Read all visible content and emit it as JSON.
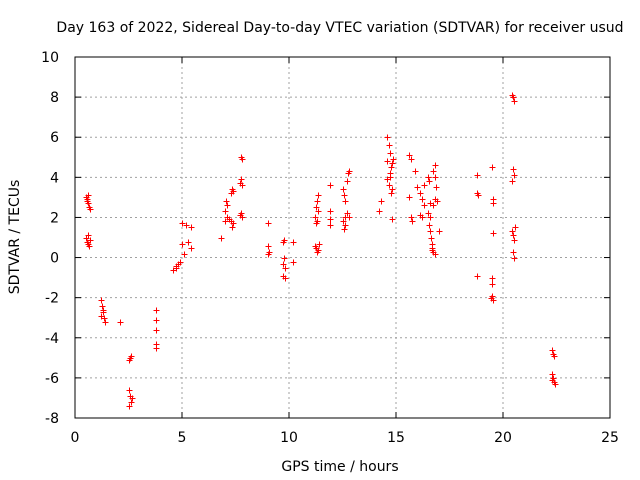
{
  "chart_data": {
    "type": "scatter",
    "title": "Day 163 of 2022, Sidereal Day-to-day VTEC variation (SDTVAR) for receiver usud",
    "xlabel": "GPS time / hours",
    "ylabel": "SDTVAR / TECUs",
    "xlim": [
      0,
      25
    ],
    "ylim": [
      -8,
      10
    ],
    "xticks": [
      0,
      5,
      10,
      15,
      20,
      25
    ],
    "yticks": [
      -8,
      -6,
      -4,
      -2,
      0,
      2,
      4,
      6,
      8,
      10
    ],
    "xtick_labels": [
      "0",
      "5",
      "10",
      "15",
      "20",
      "25"
    ],
    "ytick_labels": [
      "-8",
      "-6",
      "-4",
      "-2",
      "0",
      "2",
      "4",
      "6",
      "8",
      "10"
    ],
    "grid": true,
    "marker": "+",
    "color": "#ff0000",
    "series": [
      {
        "name": "SDTVAR",
        "points": [
          [
            0.5,
            3.0
          ],
          [
            0.55,
            2.9
          ],
          [
            0.6,
            2.7
          ],
          [
            0.65,
            2.5
          ],
          [
            0.7,
            2.4
          ],
          [
            0.55,
            2.8
          ],
          [
            0.6,
            3.1
          ],
          [
            0.5,
            1.0
          ],
          [
            0.55,
            0.8
          ],
          [
            0.6,
            0.7
          ],
          [
            0.65,
            0.6
          ],
          [
            0.7,
            0.9
          ],
          [
            0.6,
            1.1
          ],
          [
            1.2,
            -2.1
          ],
          [
            1.25,
            -2.4
          ],
          [
            1.3,
            -2.7
          ],
          [
            1.35,
            -3.0
          ],
          [
            1.4,
            -3.2
          ],
          [
            1.2,
            -2.9
          ],
          [
            1.3,
            -2.6
          ],
          [
            2.1,
            -3.2
          ],
          [
            2.5,
            -5.1
          ],
          [
            2.55,
            -5.0
          ],
          [
            2.6,
            -4.9
          ],
          [
            2.5,
            -6.6
          ],
          [
            2.55,
            -6.9
          ],
          [
            2.6,
            -7.2
          ],
          [
            2.5,
            -7.4
          ],
          [
            2.65,
            -7.0
          ],
          [
            3.8,
            -2.6
          ],
          [
            3.8,
            -3.1
          ],
          [
            3.8,
            -3.6
          ],
          [
            3.8,
            -4.3
          ],
          [
            3.8,
            -4.5
          ],
          [
            4.6,
            -0.6
          ],
          [
            4.7,
            -0.5
          ],
          [
            4.8,
            -0.3
          ],
          [
            4.9,
            -0.2
          ],
          [
            4.7,
            -0.4
          ],
          [
            5.0,
            1.7
          ],
          [
            5.0,
            0.7
          ],
          [
            5.1,
            0.2
          ],
          [
            5.3,
            0.8
          ],
          [
            5.4,
            1.5
          ],
          [
            5.4,
            0.5
          ],
          [
            5.2,
            1.6
          ],
          [
            6.8,
            1.0
          ],
          [
            7.0,
            1.8
          ],
          [
            7.1,
            2.0
          ],
          [
            7.0,
            2.3
          ],
          [
            7.1,
            2.6
          ],
          [
            7.05,
            2.8
          ],
          [
            7.2,
            1.9
          ],
          [
            7.3,
            3.2
          ],
          [
            7.35,
            3.4
          ],
          [
            7.4,
            3.3
          ],
          [
            7.3,
            1.8
          ],
          [
            7.4,
            1.7
          ],
          [
            7.35,
            1.5
          ],
          [
            7.7,
            2.1
          ],
          [
            7.75,
            2.2
          ],
          [
            7.8,
            2.0
          ],
          [
            7.7,
            3.7
          ],
          [
            7.75,
            3.9
          ],
          [
            7.8,
            3.6
          ],
          [
            7.8,
            4.9
          ],
          [
            7.75,
            5.0
          ],
          [
            9.0,
            1.7
          ],
          [
            9.0,
            0.6
          ],
          [
            9.05,
            0.3
          ],
          [
            9.0,
            0.2
          ],
          [
            9.7,
            0.8
          ],
          [
            9.75,
            0.0
          ],
          [
            9.7,
            -0.3
          ],
          [
            9.8,
            -0.5
          ],
          [
            9.7,
            -0.9
          ],
          [
            9.8,
            -1.0
          ],
          [
            9.75,
            0.9
          ],
          [
            10.2,
            0.8
          ],
          [
            10.2,
            -0.2
          ],
          [
            11.2,
            2.0
          ],
          [
            11.25,
            2.5
          ],
          [
            11.3,
            2.8
          ],
          [
            11.35,
            3.1
          ],
          [
            11.3,
            1.8
          ],
          [
            11.25,
            1.7
          ],
          [
            11.35,
            2.3
          ],
          [
            11.2,
            0.6
          ],
          [
            11.25,
            0.5
          ],
          [
            11.3,
            0.3
          ],
          [
            11.35,
            0.4
          ],
          [
            11.4,
            0.7
          ],
          [
            11.9,
            3.6
          ],
          [
            11.9,
            2.3
          ],
          [
            11.9,
            1.9
          ],
          [
            11.9,
            1.6
          ],
          [
            12.5,
            3.4
          ],
          [
            12.55,
            3.1
          ],
          [
            12.6,
            2.8
          ],
          [
            12.5,
            1.8
          ],
          [
            12.6,
            1.6
          ],
          [
            12.55,
            1.4
          ],
          [
            12.6,
            2.0
          ],
          [
            12.7,
            3.8
          ],
          [
            12.75,
            4.2
          ],
          [
            12.8,
            4.3
          ],
          [
            12.7,
            2.2
          ],
          [
            12.8,
            2.0
          ],
          [
            14.2,
            2.3
          ],
          [
            14.3,
            2.8
          ],
          [
            14.6,
            6.0
          ],
          [
            14.65,
            5.6
          ],
          [
            14.7,
            5.2
          ],
          [
            14.6,
            4.8
          ],
          [
            14.75,
            4.5
          ],
          [
            14.7,
            4.2
          ],
          [
            14.6,
            3.9
          ],
          [
            14.65,
            3.6
          ],
          [
            14.7,
            4.0
          ],
          [
            14.8,
            4.7
          ],
          [
            14.85,
            4.9
          ],
          [
            14.8,
            3.4
          ],
          [
            14.8,
            1.9
          ],
          [
            14.75,
            3.2
          ],
          [
            15.6,
            5.1
          ],
          [
            15.7,
            4.9
          ],
          [
            15.6,
            3.0
          ],
          [
            15.7,
            2.0
          ],
          [
            15.75,
            1.8
          ],
          [
            15.9,
            4.3
          ],
          [
            16.0,
            3.5
          ],
          [
            16.1,
            3.2
          ],
          [
            16.2,
            2.9
          ],
          [
            16.1,
            2.1
          ],
          [
            16.2,
            2.0
          ],
          [
            16.3,
            3.6
          ],
          [
            16.3,
            2.6
          ],
          [
            16.5,
            4.0
          ],
          [
            16.55,
            3.8
          ],
          [
            16.6,
            2.7
          ],
          [
            16.5,
            2.2
          ],
          [
            16.6,
            2.0
          ],
          [
            16.55,
            1.6
          ],
          [
            16.6,
            1.3
          ],
          [
            16.65,
            1.0
          ],
          [
            16.7,
            0.7
          ],
          [
            16.7,
            0.5
          ],
          [
            16.75,
            0.3
          ],
          [
            16.8,
            0.2
          ],
          [
            16.7,
            0.4
          ],
          [
            16.75,
            4.3
          ],
          [
            16.8,
            4.6
          ],
          [
            16.8,
            4.0
          ],
          [
            16.85,
            3.5
          ],
          [
            16.8,
            2.9
          ],
          [
            16.75,
            2.6
          ],
          [
            16.9,
            2.8
          ],
          [
            17.0,
            1.3
          ],
          [
            18.8,
            -0.9
          ],
          [
            18.8,
            3.2
          ],
          [
            18.85,
            3.1
          ],
          [
            18.8,
            4.1
          ],
          [
            19.5,
            -1.0
          ],
          [
            19.5,
            -1.3
          ],
          [
            19.5,
            -1.9
          ],
          [
            19.55,
            -2.1
          ],
          [
            19.45,
            -2.0
          ],
          [
            19.55,
            2.9
          ],
          [
            19.55,
            2.7
          ],
          [
            19.55,
            1.2
          ],
          [
            19.5,
            4.5
          ],
          [
            20.4,
            8.1
          ],
          [
            20.45,
            8.0
          ],
          [
            20.5,
            7.8
          ],
          [
            20.45,
            4.4
          ],
          [
            20.5,
            4.1
          ],
          [
            20.4,
            3.8
          ],
          [
            20.4,
            1.3
          ],
          [
            20.45,
            1.1
          ],
          [
            20.5,
            0.9
          ],
          [
            20.55,
            1.5
          ],
          [
            20.45,
            0.3
          ],
          [
            20.5,
            0.0
          ],
          [
            22.3,
            -4.6
          ],
          [
            22.35,
            -4.8
          ],
          [
            22.4,
            -4.9
          ],
          [
            22.3,
            -5.8
          ],
          [
            22.35,
            -6.0
          ],
          [
            22.4,
            -6.2
          ],
          [
            22.45,
            -6.3
          ],
          [
            22.3,
            -6.1
          ]
        ]
      }
    ]
  }
}
